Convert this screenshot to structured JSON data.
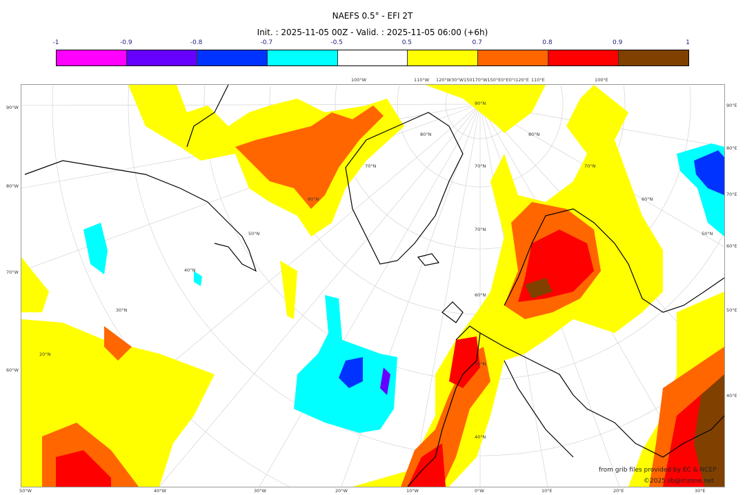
{
  "title": "NAEFS 0.5° - EFI 2T",
  "subtitle": "Init. : 2025-11-05 00Z - Valid. : 2025-11-05 06:00 (+6h)",
  "colorbar": {
    "ticks": [
      "-1",
      "-0.9",
      "-0.8",
      "-0.7",
      "-0.5",
      "0.5",
      "0.7",
      "0.8",
      "0.9",
      "1"
    ],
    "colors": [
      "#ff00ff",
      "#6600ff",
      "#0033ff",
      "#00ffff",
      "#ffffff",
      "#ffff00",
      "#ff6600",
      "#ff0000",
      "#804000"
    ]
  },
  "map": {
    "projection": "polar stereographic",
    "left_labels": [
      "90°W",
      "80°W",
      "70°W",
      "60°W"
    ],
    "right_labels": [
      "90°E",
      "80°E",
      "70°E",
      "60°E",
      "50°E",
      "40°E"
    ],
    "bottom_labels": [
      "50°W",
      "40°W",
      "30°W",
      "20°W",
      "10°W",
      "0°W",
      "10°E",
      "20°E",
      "30°E"
    ],
    "top_labels": [
      "100°W",
      "110°W",
      "120°W30°W150170°W150°E0°E0°I120°E",
      "110°E",
      "100°E"
    ],
    "inner_labels": [
      "90°N",
      "80°N",
      "80°N",
      "70°N",
      "70°N",
      "70°N",
      "60°N",
      "60°N",
      "50°N",
      "50°N",
      "70°N",
      "40°N",
      "30°N",
      "60°N",
      "20°N",
      "50°N",
      "40°N"
    ]
  },
  "credits": {
    "source": "from grib files provided by EC & NCEP",
    "copyright": "©2025 sb@irizone.net"
  }
}
